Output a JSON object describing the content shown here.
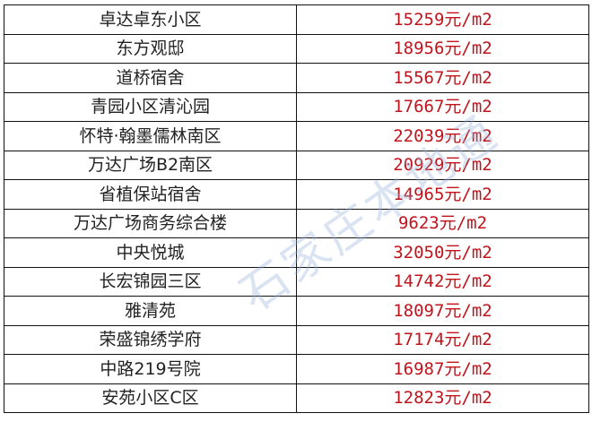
{
  "unit": "元/m2",
  "price_color": "#c0141c",
  "watermark": "石家庄本地通",
  "rows": [
    {
      "name": "卓达卓东小区",
      "price": "15259元/m2"
    },
    {
      "name": "东方观邸",
      "price": "18956元/m2"
    },
    {
      "name": "道桥宿舍",
      "price": "15567元/m2"
    },
    {
      "name": "青园小区清沁园",
      "price": "17667元/m2"
    },
    {
      "name": "怀特·翰墨儒林南区",
      "price": "22039元/m2"
    },
    {
      "name": "万达广场B2南区",
      "price": "20929元/m2"
    },
    {
      "name": "省植保站宿舍",
      "price": "14965元/m2"
    },
    {
      "name": "万达广场商务综合楼",
      "price": "9623元/m2"
    },
    {
      "name": "中央悦城",
      "price": "32050元/m2"
    },
    {
      "name": "长宏锦园三区",
      "price": "14742元/m2"
    },
    {
      "name": "雅清苑",
      "price": "18097元/m2"
    },
    {
      "name": "荣盛锦绣学府",
      "price": "17174元/m2"
    },
    {
      "name": "中路219号院",
      "price": "16987元/m2"
    },
    {
      "name": "安苑小区C区",
      "price": "12823元/m2"
    }
  ]
}
